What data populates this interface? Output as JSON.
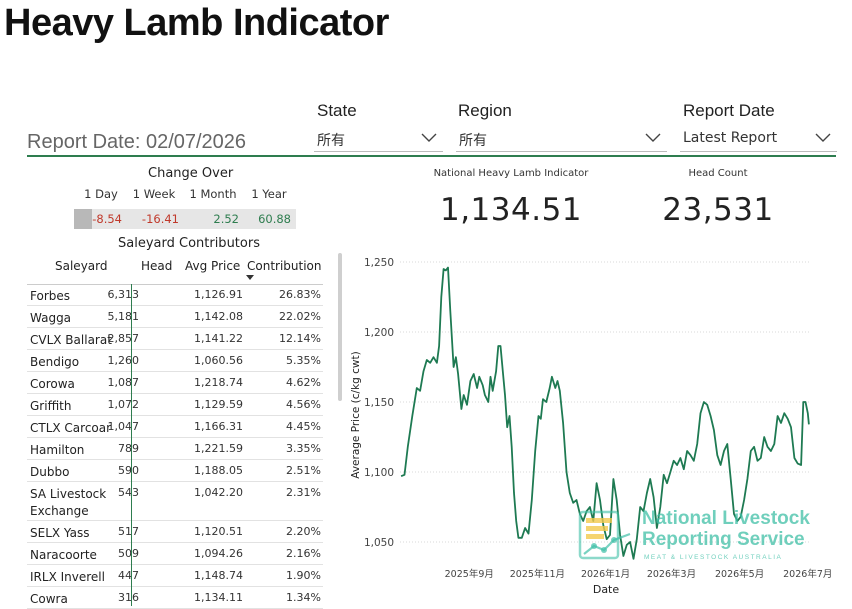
{
  "page": {
    "title": "Heavy Lamb Indicator",
    "report_date_text": "Report Date: 02/07/2026"
  },
  "filters": {
    "state": {
      "label": "State",
      "value": "所有"
    },
    "region": {
      "label": "Region",
      "value": "所有"
    },
    "report_date": {
      "label": "Report Date",
      "value": "Latest Report"
    }
  },
  "change_over": {
    "title": "Change Over",
    "headers": [
      "1 Day",
      "1 Week",
      "1 Month",
      "1 Year"
    ],
    "values": [
      "-8.54",
      "-16.41",
      "2.52",
      "60.88"
    ]
  },
  "saleyard_contributors": {
    "title": "Saleyard Contributors",
    "columns": [
      "Saleyard",
      "Head",
      "Avg Price",
      "Contribution"
    ],
    "rows": [
      [
        "Forbes",
        "6,313",
        "1,126.91",
        "26.83%"
      ],
      [
        "Wagga",
        "5,181",
        "1,142.08",
        "22.02%"
      ],
      [
        "CVLX Ballarat",
        "2,857",
        "1,141.22",
        "12.14%"
      ],
      [
        "Bendigo",
        "1,260",
        "1,060.56",
        "5.35%"
      ],
      [
        "Corowa",
        "1,087",
        "1,218.74",
        "4.62%"
      ],
      [
        "Griffith",
        "1,072",
        "1,129.59",
        "4.56%"
      ],
      [
        "CTLX Carcoar",
        "1,047",
        "1,166.31",
        "4.45%"
      ],
      [
        "Hamilton",
        "789",
        "1,221.59",
        "3.35%"
      ],
      [
        "Dubbo",
        "590",
        "1,188.05",
        "2.51%"
      ],
      [
        "SA Livestock Exchange",
        "543",
        "1,042.20",
        "2.31%"
      ],
      [
        "SELX Yass",
        "517",
        "1,120.51",
        "2.20%"
      ],
      [
        "Naracoorte",
        "509",
        "1,094.26",
        "2.16%"
      ],
      [
        "IRLX Inverell",
        "447",
        "1,148.74",
        "1.90%"
      ],
      [
        "Cowra",
        "316",
        "1,134.11",
        "1.34%"
      ]
    ]
  },
  "kpis": {
    "indicator": {
      "label": "National Heavy Lamb Indicator",
      "value": "1,134.51"
    },
    "head_count": {
      "label": "Head Count",
      "value": "23,531"
    }
  },
  "chart_data": {
    "type": "line",
    "xlabel": "Date",
    "ylabel": "Average Price (c/kg cwt)",
    "ylim": [
      1035,
      1255
    ],
    "y_ticks": [
      1050,
      1100,
      1150,
      1200,
      1250
    ],
    "y_tick_labels": [
      "1,050",
      "1,100",
      "1,150",
      "1,200",
      "1,250"
    ],
    "x_range": [
      "2025-07-01",
      "2026-07-03"
    ],
    "x_ticks": [
      "2025-09-01",
      "2025-11-01",
      "2026-01-01",
      "2026-03-01",
      "2026-05-01",
      "2026-07-01"
    ],
    "x_tick_labels": [
      "2025年9月",
      "2025年11月",
      "2026年1月",
      "2026年3月",
      "2026年5月",
      "2026年7月"
    ],
    "line_color": "#1e7a52",
    "points": [
      [
        "2025-07-02",
        1097
      ],
      [
        "2025-07-05",
        1098
      ],
      [
        "2025-07-08",
        1118
      ],
      [
        "2025-07-12",
        1140
      ],
      [
        "2025-07-16",
        1160
      ],
      [
        "2025-07-19",
        1158
      ],
      [
        "2025-07-22",
        1172
      ],
      [
        "2025-07-25",
        1180
      ],
      [
        "2025-07-28",
        1178
      ],
      [
        "2025-07-31",
        1182
      ],
      [
        "2025-08-03",
        1178
      ],
      [
        "2025-08-05",
        1190
      ],
      [
        "2025-08-07",
        1225
      ],
      [
        "2025-08-09",
        1245
      ],
      [
        "2025-08-11",
        1244
      ],
      [
        "2025-08-13",
        1246
      ],
      [
        "2025-08-15",
        1215
      ],
      [
        "2025-08-18",
        1175
      ],
      [
        "2025-08-20",
        1182
      ],
      [
        "2025-08-22",
        1170
      ],
      [
        "2025-08-25",
        1145
      ],
      [
        "2025-08-27",
        1155
      ],
      [
        "2025-08-30",
        1148
      ],
      [
        "2025-09-02",
        1165
      ],
      [
        "2025-09-05",
        1170
      ],
      [
        "2025-09-08",
        1160
      ],
      [
        "2025-09-10",
        1168
      ],
      [
        "2025-09-13",
        1162
      ],
      [
        "2025-09-15",
        1155
      ],
      [
        "2025-09-18",
        1150
      ],
      [
        "2025-09-20",
        1168
      ],
      [
        "2025-09-22",
        1158
      ],
      [
        "2025-09-25",
        1172
      ],
      [
        "2025-09-27",
        1190
      ],
      [
        "2025-09-29",
        1190
      ],
      [
        "2025-10-01",
        1172
      ],
      [
        "2025-10-03",
        1155
      ],
      [
        "2025-10-05",
        1132
      ],
      [
        "2025-10-07",
        1140
      ],
      [
        "2025-10-09",
        1118
      ],
      [
        "2025-10-11",
        1085
      ],
      [
        "2025-10-13",
        1065
      ],
      [
        "2025-10-15",
        1053
      ],
      [
        "2025-10-18",
        1053
      ],
      [
        "2025-10-21",
        1060
      ],
      [
        "2025-10-24",
        1056
      ],
      [
        "2025-10-27",
        1080
      ],
      [
        "2025-10-30",
        1115
      ],
      [
        "2025-11-02",
        1140
      ],
      [
        "2025-11-04",
        1138
      ],
      [
        "2025-11-06",
        1152
      ],
      [
        "2025-11-09",
        1150
      ],
      [
        "2025-11-12",
        1160
      ],
      [
        "2025-11-14",
        1168
      ],
      [
        "2025-11-17",
        1160
      ],
      [
        "2025-11-19",
        1165
      ],
      [
        "2025-11-21",
        1158
      ],
      [
        "2025-11-24",
        1135
      ],
      [
        "2025-11-27",
        1100
      ],
      [
        "2025-11-30",
        1085
      ],
      [
        "2025-12-03",
        1078
      ],
      [
        "2025-12-06",
        1080
      ],
      [
        "2025-12-09",
        1070
      ],
      [
        "2025-12-12",
        1065
      ],
      [
        "2025-12-15",
        1072
      ],
      [
        "2025-12-18",
        1075
      ],
      [
        "2025-12-21",
        1065
      ],
      [
        "2025-12-24",
        1092
      ],
      [
        "2025-12-27",
        1080
      ],
      [
        "2025-12-30",
        1062
      ],
      [
        "2026-01-02",
        1052
      ],
      [
        "2026-01-05",
        1055
      ],
      [
        "2026-01-08",
        1095
      ],
      [
        "2026-01-11",
        1080
      ],
      [
        "2026-01-14",
        1055
      ],
      [
        "2026-01-17",
        1040
      ],
      [
        "2026-01-20",
        1048
      ],
      [
        "2026-01-23",
        1050
      ],
      [
        "2026-01-26",
        1038
      ],
      [
        "2026-01-29",
        1052
      ],
      [
        "2026-02-01",
        1075
      ],
      [
        "2026-02-04",
        1072
      ],
      [
        "2026-02-07",
        1085
      ],
      [
        "2026-02-10",
        1095
      ],
      [
        "2026-02-13",
        1082
      ],
      [
        "2026-02-16",
        1060
      ],
      [
        "2026-02-19",
        1075
      ],
      [
        "2026-02-22",
        1098
      ],
      [
        "2026-02-25",
        1092
      ],
      [
        "2026-02-28",
        1100
      ],
      [
        "2026-03-03",
        1108
      ],
      [
        "2026-03-06",
        1105
      ],
      [
        "2026-03-09",
        1110
      ],
      [
        "2026-03-12",
        1102
      ],
      [
        "2026-03-15",
        1115
      ],
      [
        "2026-03-18",
        1112
      ],
      [
        "2026-03-21",
        1108
      ],
      [
        "2026-03-24",
        1120
      ],
      [
        "2026-03-27",
        1142
      ],
      [
        "2026-03-30",
        1150
      ],
      [
        "2026-04-02",
        1148
      ],
      [
        "2026-04-05",
        1140
      ],
      [
        "2026-04-08",
        1130
      ],
      [
        "2026-04-11",
        1112
      ],
      [
        "2026-04-14",
        1105
      ],
      [
        "2026-04-17",
        1115
      ],
      [
        "2026-04-20",
        1120
      ],
      [
        "2026-04-23",
        1095
      ],
      [
        "2026-04-26",
        1070
      ],
      [
        "2026-04-29",
        1065
      ],
      [
        "2026-05-02",
        1068
      ],
      [
        "2026-05-05",
        1080
      ],
      [
        "2026-05-08",
        1095
      ],
      [
        "2026-05-11",
        1115
      ],
      [
        "2026-05-14",
        1118
      ],
      [
        "2026-05-17",
        1108
      ],
      [
        "2026-05-20",
        1110
      ],
      [
        "2026-05-23",
        1125
      ],
      [
        "2026-05-26",
        1118
      ],
      [
        "2026-05-29",
        1115
      ],
      [
        "2026-06-01",
        1120
      ],
      [
        "2026-06-04",
        1140
      ],
      [
        "2026-06-07",
        1135
      ],
      [
        "2026-06-10",
        1142
      ],
      [
        "2026-06-13",
        1138
      ],
      [
        "2026-06-16",
        1132
      ],
      [
        "2026-06-19",
        1110
      ],
      [
        "2026-06-22",
        1106
      ],
      [
        "2026-06-25",
        1105
      ],
      [
        "2026-06-27",
        1150
      ],
      [
        "2026-06-29",
        1150
      ],
      [
        "2026-07-01",
        1142
      ],
      [
        "2026-07-02",
        1134
      ]
    ]
  },
  "logo": {
    "line1": "National Livestock",
    "line2": "Reporting Service",
    "tagline": "MEAT & LIVESTOCK AUSTRALIA",
    "color": "#3fbfa6"
  }
}
